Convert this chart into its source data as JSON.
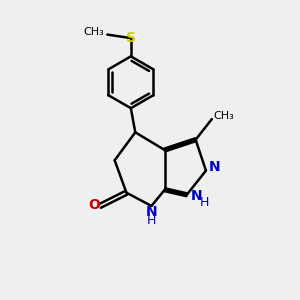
{
  "bg_color": "#efefef",
  "bond_color": "#000000",
  "nitrogen_color": "#0000cc",
  "oxygen_color": "#cc0000",
  "sulfur_color": "#cccc00",
  "carbon_color": "#000000",
  "line_width": 1.8,
  "font_size": 9,
  "fig_size": [
    3.0,
    3.0
  ],
  "dpi": 100,
  "xlim": [
    0,
    10
  ],
  "ylim": [
    0,
    10
  ]
}
